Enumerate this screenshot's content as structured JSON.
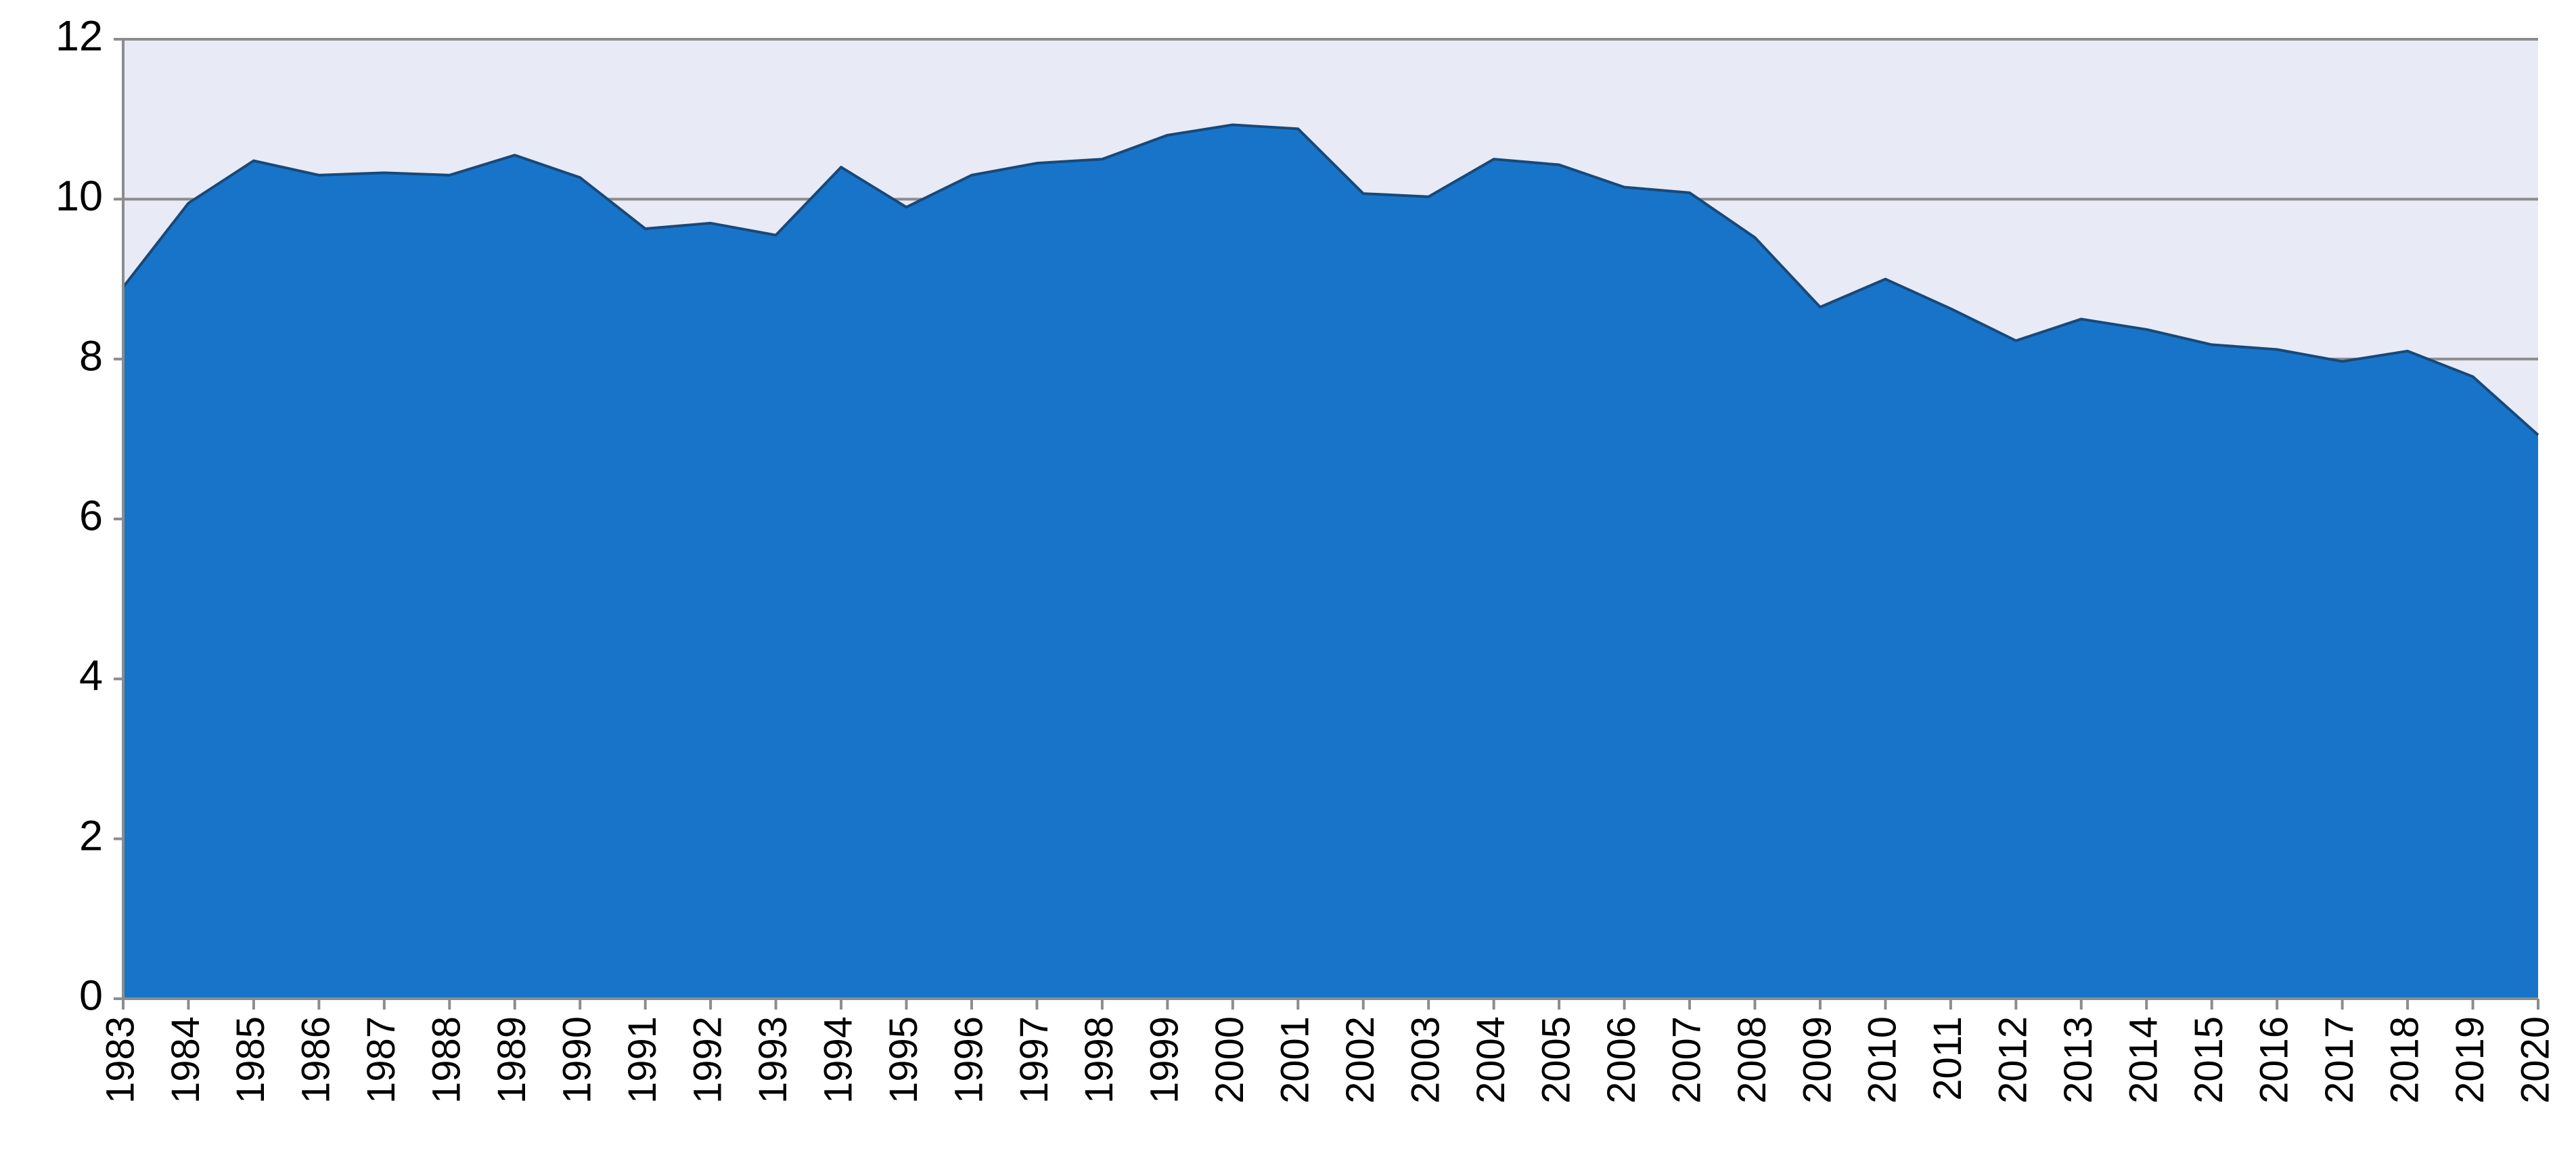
{
  "chart_data": {
    "type": "area",
    "x": [
      1983,
      1984,
      1985,
      1986,
      1987,
      1988,
      1989,
      1990,
      1991,
      1992,
      1993,
      1994,
      1995,
      1996,
      1997,
      1998,
      1999,
      2000,
      2001,
      2002,
      2003,
      2004,
      2005,
      2006,
      2007,
      2008,
      2009,
      2010,
      2011,
      2012,
      2013,
      2014,
      2015,
      2016,
      2017,
      2018,
      2019,
      2020
    ],
    "values": [
      8.9,
      9.95,
      10.48,
      10.3,
      10.33,
      10.3,
      10.55,
      10.27,
      9.63,
      9.7,
      9.55,
      10.4,
      9.9,
      10.3,
      10.45,
      10.5,
      10.8,
      10.93,
      10.88,
      10.07,
      10.03,
      10.5,
      10.43,
      10.15,
      10.08,
      9.52,
      8.65,
      9.0,
      8.63,
      8.23,
      8.5,
      8.37,
      8.18,
      8.12,
      7.97,
      8.1,
      7.78,
      7.05
    ],
    "color": "#1874c8",
    "xlim": [
      1983,
      2020
    ],
    "ylim": [
      0,
      12
    ],
    "yticks": [
      0,
      2,
      4,
      6,
      8,
      10,
      12
    ],
    "grid": true
  }
}
